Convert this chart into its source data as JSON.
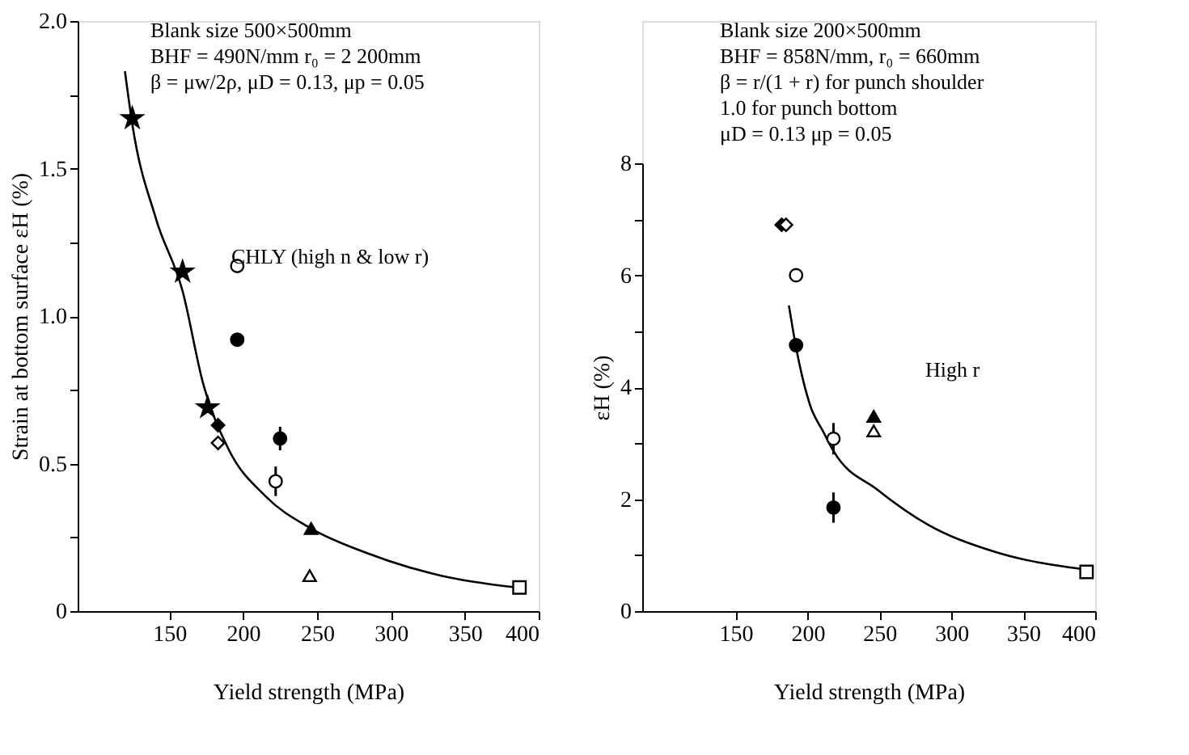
{
  "chart_data": [
    {
      "type": "scatter",
      "xlabel": "Yield strength (MPa)",
      "ylabel": "Strain at bottom surface εH (%)",
      "xlim": [
        88,
        400
      ],
      "xticks": [
        150,
        200,
        250,
        300,
        350,
        400
      ],
      "ylim": [
        0,
        2.0
      ],
      "yticks": [
        {
          "value": 0,
          "label": "0"
        },
        {
          "value": 0.25,
          "label": null
        },
        0.5,
        {
          "value": 0.75,
          "label": null
        },
        {
          "value": 1,
          "label": "1.0"
        },
        {
          "value": 1.25,
          "label": null
        },
        1.5,
        {
          "value": 1.75,
          "label": null
        },
        {
          "value": 2,
          "label": "2.0"
        }
      ],
      "grid": false,
      "annotations": [
        "Blank size 500×500mm\nBHF = 490N/mm    r₀ = 2 200mm\nβ = μw/2ρ,   μD = 0.13,   μp = 0.05",
        "CHLY (high n & low r)"
      ],
      "series": [
        {
          "type": "line",
          "marker": "none",
          "color": "#000000",
          "x": [
            120,
            125,
            141,
            159,
            173,
            190,
            215,
            246,
            282,
            334,
            385
          ],
          "values": [
            1.83,
            1.65,
            1.33,
            1.085,
            0.77,
            0.55,
            0.39,
            0.28,
            0.2,
            0.12,
            0.08
          ]
        },
        {
          "marker": "star",
          "color": "#000000",
          "x": [
            125,
            159,
            176
          ],
          "values": [
            1.67,
            1.15,
            0.69
          ]
        },
        {
          "marker": "diamond",
          "color": "#000000",
          "x": [
            183
          ],
          "values": [
            0.63
          ]
        },
        {
          "marker": "diamond",
          "color": "#ffffff",
          "x": [
            183
          ],
          "values": [
            0.57
          ]
        },
        {
          "marker": "circle",
          "color": "#ffffff",
          "x": [
            196,
            222
          ],
          "values": [
            1.17,
            0.44
          ],
          "errors": [
            null,
            0.05
          ]
        },
        {
          "marker": "circle",
          "color": "#000000",
          "x": [
            196,
            225
          ],
          "values": [
            0.92,
            0.585
          ],
          "errors": [
            null,
            0.04
          ]
        },
        {
          "marker": "triangle",
          "color": "#000000",
          "x": [
            246
          ],
          "values": [
            0.28
          ]
        },
        {
          "marker": "triangle",
          "color": "#ffffff",
          "x": [
            245
          ],
          "values": [
            0.12
          ]
        },
        {
          "marker": "square",
          "color": "#ffffff",
          "x": [
            387
          ],
          "values": [
            0.08
          ]
        }
      ]
    },
    {
      "type": "scatter",
      "xlabel": "Yield strength (MPa)",
      "ylabel": "εH (%)",
      "xlim": [
        85,
        400
      ],
      "xticks": [
        150,
        200,
        250,
        300,
        350,
        400
      ],
      "ylim": [
        0,
        8
      ],
      "yticks": [
        {
          "value": 0,
          "label": "0"
        },
        {
          "value": 1,
          "label": null
        },
        2,
        {
          "value": 3,
          "label": null
        },
        4,
        {
          "value": 5,
          "label": null
        },
        6,
        {
          "value": 7,
          "label": null
        },
        8
      ],
      "grid": false,
      "annotations": [
        "Blank size 200×500mm\nBHF = 858N/mm,    r₀ = 660mm\nβ = r/(1 + r) for punch shoulder\n      1.0          for punch bottom\nμD = 0.13         μp = 0.05",
        "High r"
      ],
      "series": [
        {
          "type": "line",
          "marker": "none",
          "color": "#000000",
          "x": [
            187,
            192,
            202,
            211,
            218,
            249,
            284,
            330,
            391
          ],
          "values": [
            5.46,
            4.71,
            3.66,
            3.2,
            2.86,
            2.16,
            1.54,
            1.06,
            0.75
          ]
        },
        {
          "marker": "diamond",
          "color": "#000000",
          "x": [
            182
          ],
          "values": [
            6.9
          ]
        },
        {
          "marker": "diamond",
          "color": "#ffffff",
          "x": [
            185
          ],
          "values": [
            6.9
          ]
        },
        {
          "marker": "circle",
          "color": "#ffffff",
          "x": [
            192,
            218
          ],
          "values": [
            6.0,
            3.08
          ],
          "errors": [
            null,
            0.28
          ]
        },
        {
          "marker": "circle",
          "color": "#000000",
          "x": [
            192,
            218
          ],
          "values": [
            4.75,
            1.85
          ],
          "errors": [
            null,
            0.27
          ]
        },
        {
          "marker": "triangle",
          "color": "#000000",
          "x": [
            246
          ],
          "values": [
            3.48
          ]
        },
        {
          "marker": "triangle",
          "color": "#ffffff",
          "x": [
            246
          ],
          "values": [
            3.22
          ]
        },
        {
          "marker": "square",
          "color": "#ffffff",
          "x": [
            394
          ],
          "values": [
            0.7
          ]
        }
      ]
    }
  ]
}
